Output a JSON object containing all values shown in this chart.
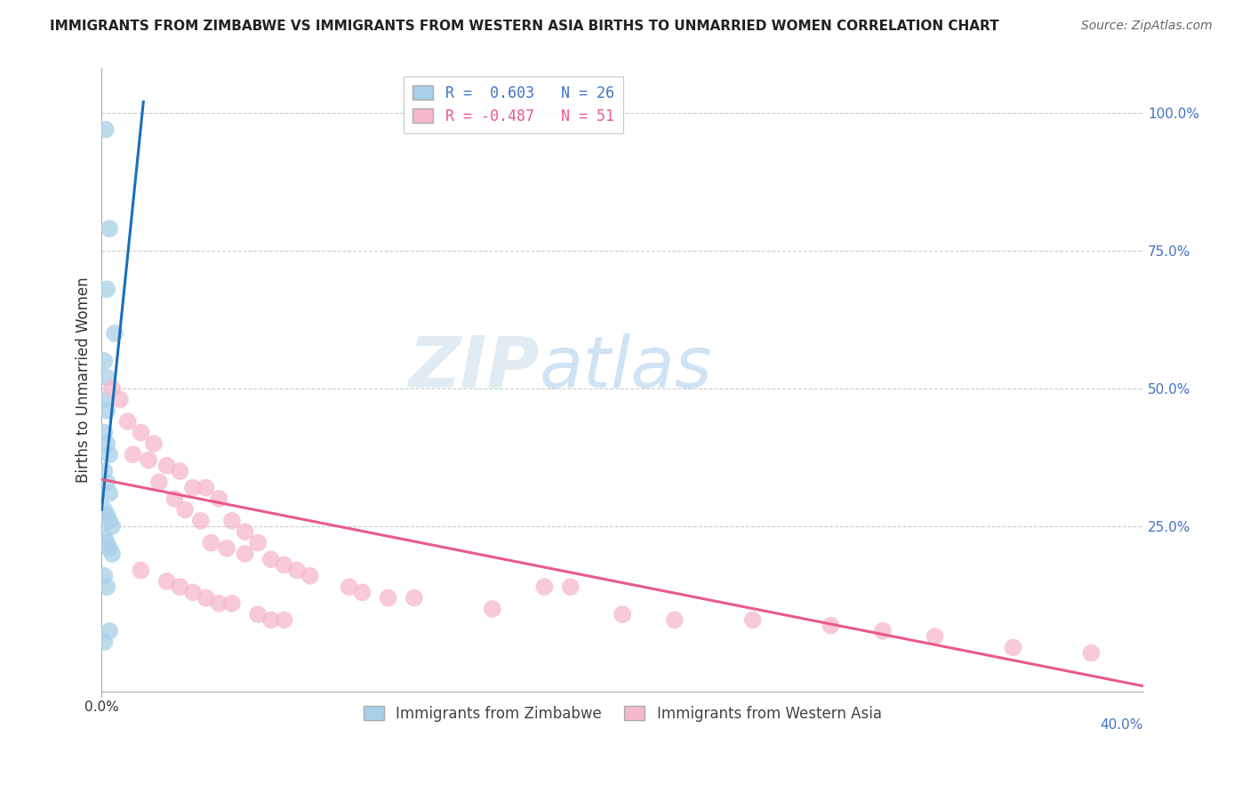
{
  "title": "IMMIGRANTS FROM ZIMBABWE VS IMMIGRANTS FROM WESTERN ASIA BIRTHS TO UNMARRIED WOMEN CORRELATION CHART",
  "source": "Source: ZipAtlas.com",
  "ylabel": "Births to Unmarried Women",
  "right_yticklabels": [
    "25.0%",
    "50.0%",
    "75.0%",
    "100.0%"
  ],
  "right_ytick_vals": [
    0.25,
    0.5,
    0.75,
    1.0
  ],
  "xlim": [
    0.0,
    0.4
  ],
  "ylim": [
    -0.05,
    1.08
  ],
  "background_color": "#ffffff",
  "grid_color": "#cccccc",
  "zimbabwe_color": "#a8d0e8",
  "western_asia_color": "#f5b8cf",
  "zimbabwe_line_color": "#1a6fba",
  "western_asia_line_color": "#e85a8a",
  "zimbabwe_line": [
    [
      0.0,
      0.28
    ],
    [
      0.016,
      1.02
    ]
  ],
  "western_asia_line": [
    [
      0.0,
      0.335
    ],
    [
      0.4,
      -0.04
    ]
  ],
  "zimbabwe_scatter": [
    [
      0.0015,
      0.97
    ],
    [
      0.003,
      0.79
    ],
    [
      0.002,
      0.68
    ],
    [
      0.005,
      0.6
    ],
    [
      0.001,
      0.55
    ],
    [
      0.002,
      0.52
    ],
    [
      0.001,
      0.48
    ],
    [
      0.002,
      0.46
    ],
    [
      0.001,
      0.42
    ],
    [
      0.002,
      0.4
    ],
    [
      0.003,
      0.38
    ],
    [
      0.001,
      0.35
    ],
    [
      0.002,
      0.33
    ],
    [
      0.003,
      0.31
    ],
    [
      0.001,
      0.28
    ],
    [
      0.002,
      0.27
    ],
    [
      0.003,
      0.26
    ],
    [
      0.004,
      0.25
    ],
    [
      0.001,
      0.23
    ],
    [
      0.002,
      0.22
    ],
    [
      0.003,
      0.21
    ],
    [
      0.004,
      0.2
    ],
    [
      0.001,
      0.16
    ],
    [
      0.002,
      0.14
    ],
    [
      0.003,
      0.06
    ],
    [
      0.001,
      0.04
    ]
  ],
  "western_asia_scatter": [
    [
      0.004,
      0.5
    ],
    [
      0.007,
      0.48
    ],
    [
      0.01,
      0.44
    ],
    [
      0.015,
      0.42
    ],
    [
      0.02,
      0.4
    ],
    [
      0.012,
      0.38
    ],
    [
      0.018,
      0.37
    ],
    [
      0.025,
      0.36
    ],
    [
      0.03,
      0.35
    ],
    [
      0.022,
      0.33
    ],
    [
      0.035,
      0.32
    ],
    [
      0.028,
      0.3
    ],
    [
      0.04,
      0.32
    ],
    [
      0.045,
      0.3
    ],
    [
      0.032,
      0.28
    ],
    [
      0.038,
      0.26
    ],
    [
      0.05,
      0.26
    ],
    [
      0.055,
      0.24
    ],
    [
      0.06,
      0.22
    ],
    [
      0.042,
      0.22
    ],
    [
      0.048,
      0.21
    ],
    [
      0.055,
      0.2
    ],
    [
      0.065,
      0.19
    ],
    [
      0.07,
      0.18
    ],
    [
      0.075,
      0.17
    ],
    [
      0.08,
      0.16
    ],
    [
      0.095,
      0.14
    ],
    [
      0.1,
      0.13
    ],
    [
      0.11,
      0.12
    ],
    [
      0.12,
      0.12
    ],
    [
      0.15,
      0.1
    ],
    [
      0.2,
      0.09
    ],
    [
      0.22,
      0.08
    ],
    [
      0.25,
      0.08
    ],
    [
      0.28,
      0.07
    ],
    [
      0.015,
      0.17
    ],
    [
      0.025,
      0.15
    ],
    [
      0.03,
      0.14
    ],
    [
      0.035,
      0.13
    ],
    [
      0.04,
      0.12
    ],
    [
      0.045,
      0.11
    ],
    [
      0.05,
      0.11
    ],
    [
      0.06,
      0.09
    ],
    [
      0.065,
      0.08
    ],
    [
      0.07,
      0.08
    ],
    [
      0.17,
      0.14
    ],
    [
      0.18,
      0.14
    ],
    [
      0.3,
      0.06
    ],
    [
      0.32,
      0.05
    ],
    [
      0.35,
      0.03
    ],
    [
      0.38,
      0.02
    ]
  ],
  "legend_r_labels": [
    "R =  0.603   N = 26",
    "R = -0.487   N = 51"
  ],
  "legend_r_colors": [
    "#4472c4",
    "#e85a8a"
  ],
  "legend_series_labels": [
    "Immigrants from Zimbabwe",
    "Immigrants from Western Asia"
  ],
  "legend_series_colors": [
    "#a8d0e8",
    "#f5b8cf"
  ]
}
